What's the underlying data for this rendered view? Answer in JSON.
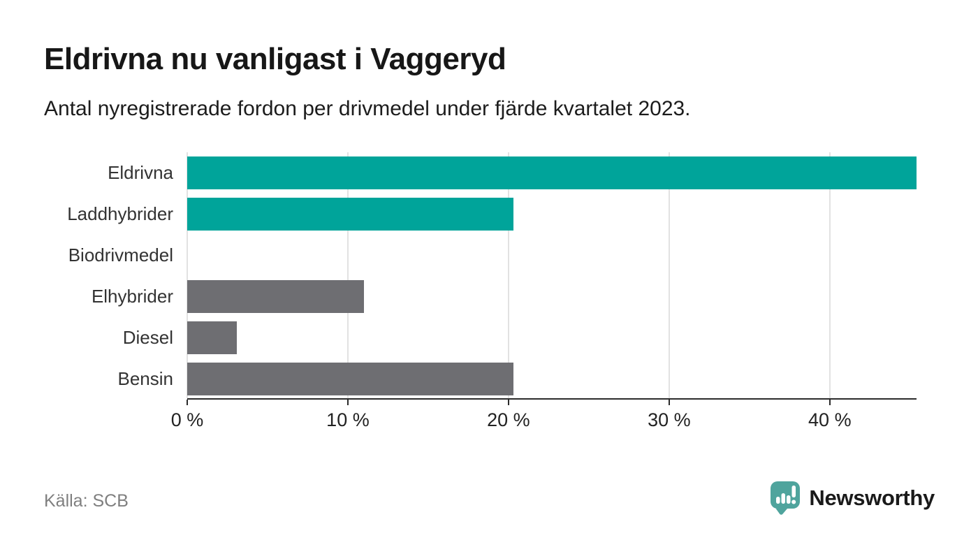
{
  "header": {
    "title": "Eldrivna nu vanligast i Vaggeryd",
    "subtitle": "Antal nyregistrerade fordon per drivmedel under fjärde kvartalet 2023."
  },
  "chart_data": {
    "type": "bar",
    "orientation": "horizontal",
    "title": "Eldrivna nu vanligast i Vaggeryd",
    "subtitle": "Antal nyregistrerade fordon per drivmedel under fjärde kvartalet 2023.",
    "categories": [
      "Eldrivna",
      "Laddhybrider",
      "Biodrivmedel",
      "Elhybrider",
      "Diesel",
      "Bensin"
    ],
    "values": [
      45.4,
      20.3,
      0,
      11.0,
      3.1,
      20.3
    ],
    "unit": "%",
    "bar_colors": [
      "#00a49a",
      "#00a49a",
      "#6e6e72",
      "#6e6e72",
      "#6e6e72",
      "#6e6e72"
    ],
    "highlight_color": "#00a49a",
    "default_color": "#6e6e72",
    "xlim": [
      0,
      45.4
    ],
    "x_ticks": [
      0,
      10,
      20,
      30,
      40
    ],
    "x_tick_labels": [
      "0 %",
      "10 %",
      "20 %",
      "30 %",
      "40 %"
    ],
    "grid": "vertical-gridlines",
    "legend": "none"
  },
  "footer": {
    "source": "Källa: SCB",
    "brand": "Newsworthy",
    "brand_color": "#4fa49d"
  },
  "icons": {
    "logo": "newsworthy-speech-bubble-bar-chart-icon"
  }
}
